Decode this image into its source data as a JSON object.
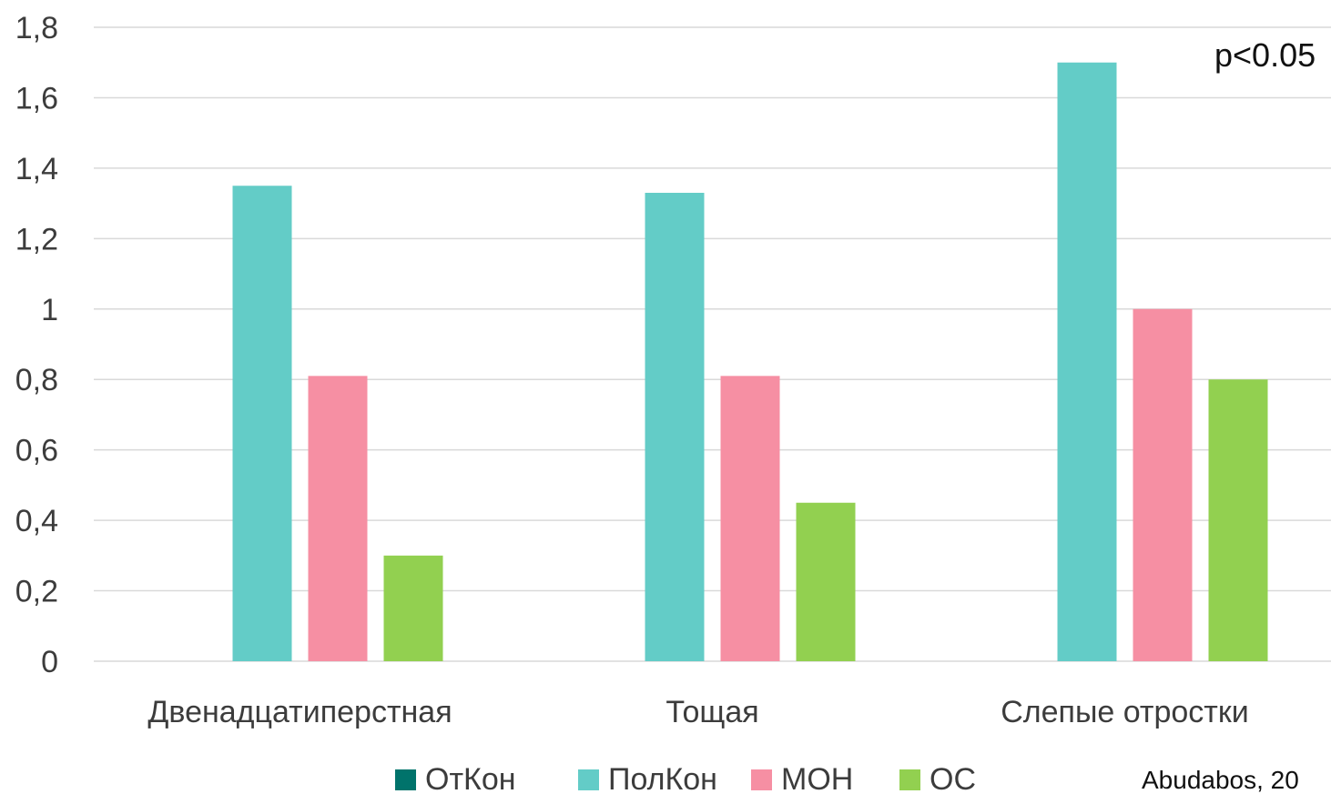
{
  "chart_data": {
    "type": "bar",
    "categories": [
      "Двенадцатиперстная",
      "Тощая",
      "Слепые отростки"
    ],
    "series": [
      {
        "name": "ОтКон",
        "color": "#00736b",
        "values": [
          0,
          0,
          0
        ]
      },
      {
        "name": "ПолКон",
        "color": "#63ccc7",
        "values": [
          1.35,
          1.33,
          1.7
        ]
      },
      {
        "name": "МОН",
        "color": "#f68fa3",
        "values": [
          0.81,
          0.81,
          1.0
        ]
      },
      {
        "name": "ОС",
        "color": "#92d050",
        "values": [
          0.3,
          0.45,
          0.8
        ]
      }
    ],
    "yticks": [
      "0",
      "0,2",
      "0,4",
      "0,6",
      "0,8",
      "1",
      "1,2",
      "1,4",
      "1,6",
      "1,8"
    ],
    "ylim": [
      0,
      1.8
    ],
    "grid": true,
    "legend_position": "bottom",
    "annotation": "p<0.05",
    "source": "Abudabos, 20",
    "title": "",
    "xlabel": "",
    "ylabel": ""
  }
}
